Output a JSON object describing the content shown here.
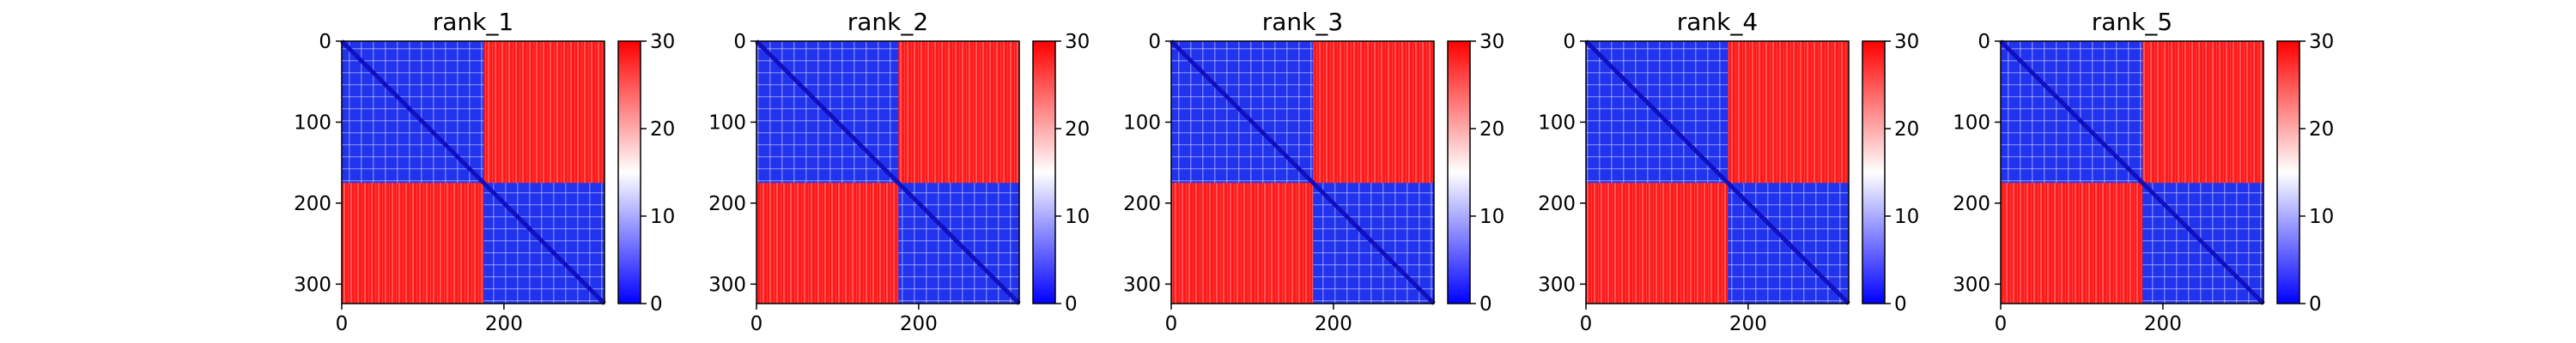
{
  "chart_data": [
    {
      "type": "heatmap",
      "title": "rank_1",
      "x_range": [
        0,
        324
      ],
      "y_range": [
        0,
        324
      ],
      "x_ticks": [
        0,
        200
      ],
      "y_ticks": [
        0,
        100,
        200,
        300
      ],
      "colorbar": {
        "range": [
          0,
          30
        ],
        "ticks": [
          0,
          10,
          20,
          30
        ],
        "colors": {
          "low": "#0000ff",
          "mid": "#ffffff",
          "high": "#ff0000"
        }
      },
      "domains": [
        {
          "start": 0,
          "end": 175
        },
        {
          "start": 175,
          "end": 324
        }
      ],
      "diagonal_value": 2
    },
    {
      "type": "heatmap",
      "title": "rank_2",
      "x_range": [
        0,
        324
      ],
      "y_range": [
        0,
        324
      ],
      "x_ticks": [
        0,
        200
      ],
      "y_ticks": [
        0,
        100,
        200,
        300
      ],
      "colorbar": {
        "range": [
          0,
          30
        ],
        "ticks": [
          0,
          10,
          20,
          30
        ],
        "colors": {
          "low": "#0000ff",
          "mid": "#ffffff",
          "high": "#ff0000"
        }
      },
      "domains": [
        {
          "start": 0,
          "end": 175
        },
        {
          "start": 175,
          "end": 324
        }
      ],
      "diagonal_value": 2
    },
    {
      "type": "heatmap",
      "title": "rank_3",
      "x_range": [
        0,
        324
      ],
      "y_range": [
        0,
        324
      ],
      "x_ticks": [
        0,
        200
      ],
      "y_ticks": [
        0,
        100,
        200,
        300
      ],
      "colorbar": {
        "range": [
          0,
          30
        ],
        "ticks": [
          0,
          10,
          20,
          30
        ],
        "colors": {
          "low": "#0000ff",
          "mid": "#ffffff",
          "high": "#ff0000"
        }
      },
      "domains": [
        {
          "start": 0,
          "end": 175
        },
        {
          "start": 175,
          "end": 324
        }
      ],
      "diagonal_value": 2
    },
    {
      "type": "heatmap",
      "title": "rank_4",
      "x_range": [
        0,
        324
      ],
      "y_range": [
        0,
        324
      ],
      "x_ticks": [
        0,
        200
      ],
      "y_ticks": [
        0,
        100,
        200,
        300
      ],
      "colorbar": {
        "range": [
          0,
          30
        ],
        "ticks": [
          0,
          10,
          20,
          30
        ],
        "colors": {
          "low": "#0000ff",
          "mid": "#ffffff",
          "high": "#ff0000"
        }
      },
      "domains": [
        {
          "start": 0,
          "end": 175
        },
        {
          "start": 175,
          "end": 324
        }
      ],
      "diagonal_value": 2
    },
    {
      "type": "heatmap",
      "title": "rank_5",
      "x_range": [
        0,
        324
      ],
      "y_range": [
        0,
        324
      ],
      "x_ticks": [
        0,
        200
      ],
      "y_ticks": [
        0,
        100,
        200,
        300
      ],
      "colorbar": {
        "range": [
          0,
          30
        ],
        "ticks": [
          0,
          10,
          20,
          30
        ],
        "colors": {
          "low": "#0000ff",
          "mid": "#ffffff",
          "high": "#ff0000"
        }
      },
      "domains": [
        {
          "start": 0,
          "end": 175
        },
        {
          "start": 175,
          "end": 324
        }
      ],
      "diagonal_value": 2
    }
  ]
}
